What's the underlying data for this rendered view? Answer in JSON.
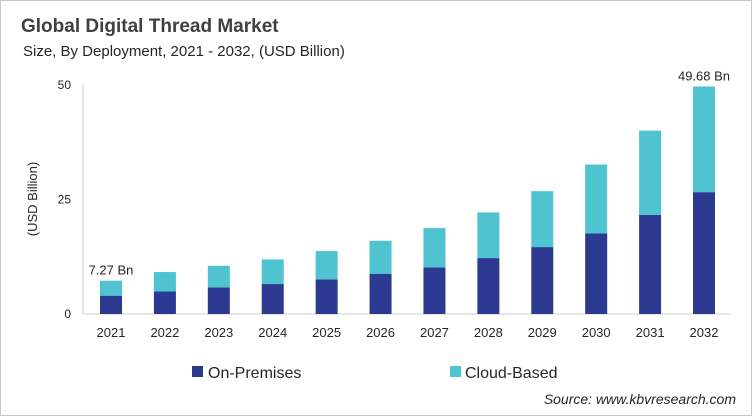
{
  "chart_data": {
    "type": "bar",
    "stacked": true,
    "title": "Global Digital Thread Market",
    "subtitle": "Size, By Deployment, 2021 - 2032, (USD Billion)",
    "xlabel": "",
    "ylabel": "(USD Billion)",
    "ylim": [
      0,
      50
    ],
    "yticks": [
      "0",
      "25",
      "50"
    ],
    "grid": false,
    "legend_position": "bottom",
    "categories": [
      "2021",
      "2022",
      "2023",
      "2024",
      "2025",
      "2026",
      "2027",
      "2028",
      "2029",
      "2030",
      "2031",
      "2032"
    ],
    "series": [
      {
        "name": "On-Premises",
        "color": "#2B3990",
        "values": [
          4.0,
          4.94,
          5.81,
          6.54,
          7.56,
          8.79,
          10.17,
          12.21,
          14.61,
          17.59,
          21.66,
          26.6
        ]
      },
      {
        "name": "Cloud-Based",
        "color": "#4FC3CF",
        "values": [
          3.27,
          4.22,
          4.73,
          5.38,
          6.18,
          7.2,
          8.58,
          9.96,
          12.21,
          15.04,
          18.38,
          23.08
        ]
      }
    ],
    "data_labels": [
      {
        "category": "2021",
        "text": "7.27 Bn"
      },
      {
        "category": "2032",
        "text": "49.68 Bn"
      }
    ],
    "source": "Source: www.kbvresearch.com"
  }
}
